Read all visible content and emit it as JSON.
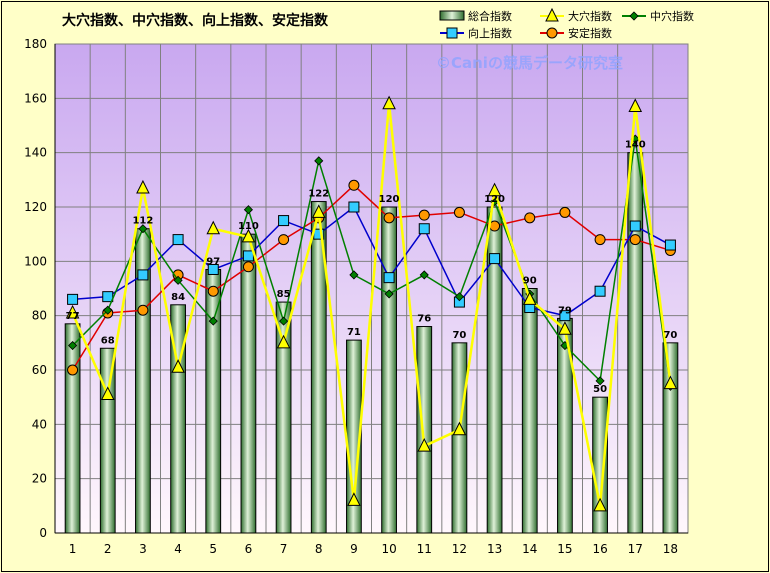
{
  "chart_data": {
    "type": "bar",
    "title": "大穴指数、中穴指数、向上指数、安定指数",
    "watermark": "©Caniの競馬データ研究室",
    "categories": [
      "1",
      "2",
      "3",
      "4",
      "5",
      "6",
      "7",
      "8",
      "9",
      "10",
      "11",
      "12",
      "13",
      "14",
      "15",
      "16",
      "17",
      "18"
    ],
    "ylim": [
      0,
      180
    ],
    "yticks": [
      0,
      20,
      40,
      60,
      80,
      100,
      120,
      140,
      160,
      180
    ],
    "grid": true,
    "legend_position": "top-right",
    "series": [
      {
        "name": "総合指数",
        "kind": "bar",
        "color": "#3a8a3a",
        "values": [
          77,
          68,
          112,
          84,
          97,
          110,
          85,
          122,
          71,
          120,
          76,
          70,
          120,
          90,
          79,
          50,
          140,
          70
        ],
        "labels": [
          "77",
          "68",
          "112",
          "84",
          "97",
          "110",
          "85",
          "122",
          "71",
          "120",
          "76",
          "70",
          "120",
          "90",
          "79",
          "50",
          "140",
          "70"
        ]
      },
      {
        "name": "大穴指数",
        "kind": "line",
        "color": "#ffff00",
        "marker": "triangle",
        "values": [
          81,
          51,
          127,
          61,
          112,
          109,
          70,
          118,
          12,
          158,
          32,
          38,
          126,
          86,
          75,
          10,
          157,
          55
        ]
      },
      {
        "name": "中穴指数",
        "kind": "line",
        "color": "#008000",
        "marker": "diamond",
        "values": [
          69,
          82,
          112,
          93,
          78,
          119,
          78,
          137,
          95,
          88,
          95,
          87,
          122,
          88,
          69,
          56,
          145,
          54
        ]
      },
      {
        "name": "向上指数",
        "kind": "line",
        "color": "#0000cc",
        "marker": "square",
        "values": [
          86,
          87,
          95,
          108,
          97,
          102,
          115,
          110,
          120,
          94,
          112,
          85,
          101,
          83,
          80,
          89,
          113,
          106
        ]
      },
      {
        "name": "安定指数",
        "kind": "line",
        "color": "#e00000",
        "marker": "circle",
        "values": [
          60,
          81,
          82,
          95,
          89,
          98,
          108,
          116,
          128,
          116,
          117,
          118,
          113,
          116,
          118,
          108,
          108,
          104
        ]
      }
    ]
  }
}
